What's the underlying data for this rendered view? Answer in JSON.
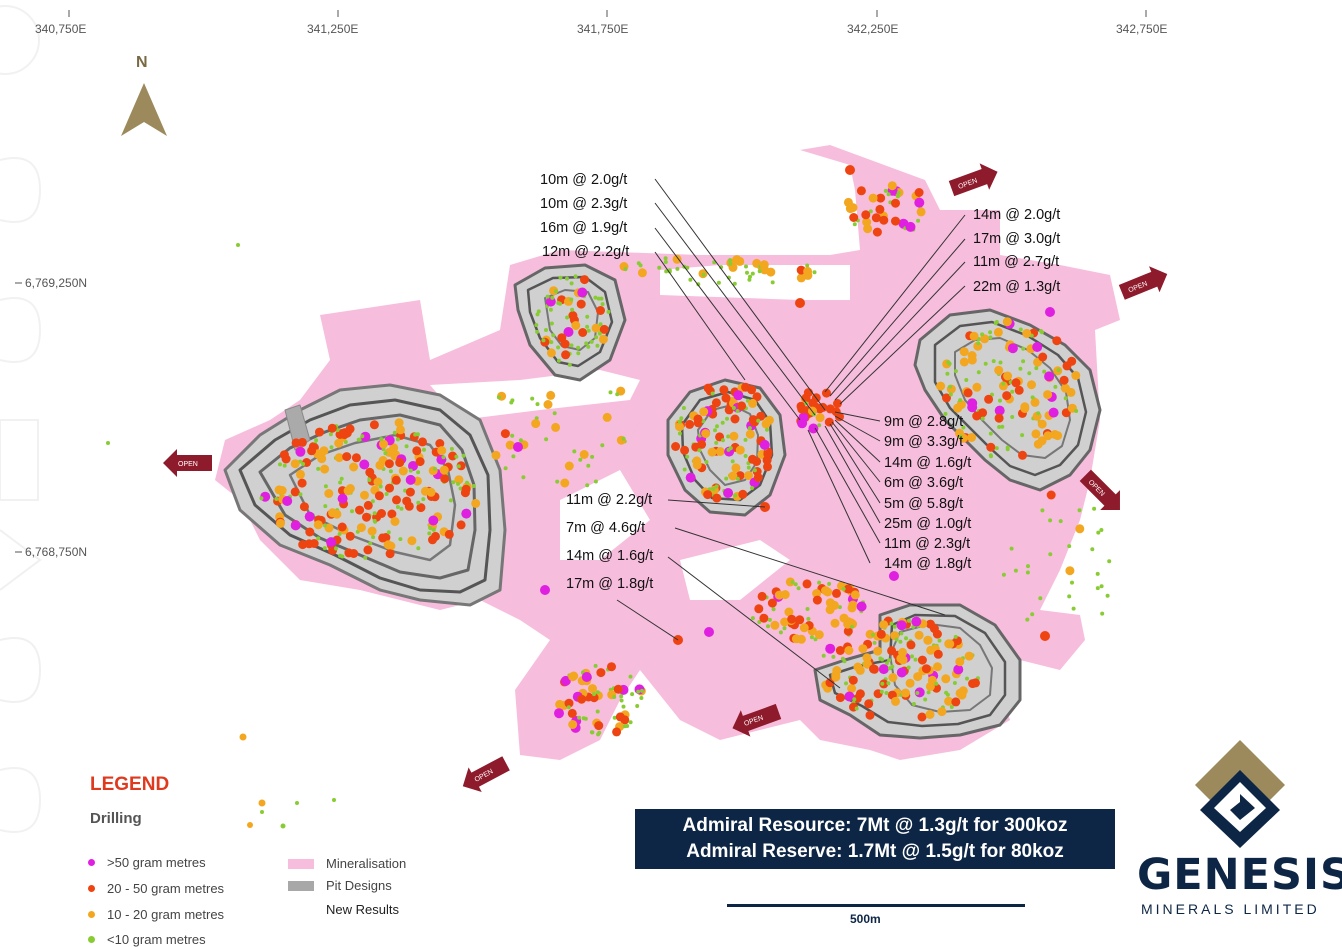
{
  "coordinates": {
    "eastings": [
      "340,750E",
      "341,250E",
      "341,750E",
      "342,250E",
      "342,750E"
    ],
    "northings": [
      "6,769,250N",
      "6,768,750N"
    ]
  },
  "north_label": "N",
  "open_label": "OPEN",
  "intercepts": {
    "group_a": [
      "10m @ 2.0g/t",
      "10m @ 2.3g/t",
      "16m @ 1.9g/t",
      "12m @ 2.2g/t"
    ],
    "group_b": [
      "14m @ 2.0g/t",
      "17m @ 3.0g/t",
      "11m @ 2.7g/t",
      "22m @ 1.3g/t"
    ],
    "group_c": [
      "9m @ 2.8g/t",
      "9m @ 3.3g/t",
      "14m @ 1.6g/t",
      "6m @ 3.6g/t",
      "5m @ 5.8g/t",
      "25m @ 1.0g/t",
      "11m @ 2.3g/t",
      "14m @ 1.8g/t"
    ],
    "group_d": [
      "11m @ 2.2g/t",
      "7m @ 4.6g/t",
      "14m @ 1.6g/t",
      "17m @ 1.8g/t"
    ]
  },
  "legend": {
    "title": "LEGEND",
    "drilling_label": "Drilling",
    "items": [
      ">50 gram metres",
      "20 - 50 gram metres",
      "10 - 20 gram metres",
      "<10 gram metres"
    ],
    "item_colors": [
      "#e020e0",
      "#ee4411",
      "#f3a720",
      "#88cc33"
    ],
    "mineralisation": "Mineralisation",
    "pit_designs": "Pit Designs",
    "new_results": "New Results"
  },
  "banner": {
    "line1": "Admiral Resource: 7Mt @ 1.3g/t for 300koz",
    "line2": "Admiral Reserve: 1.7Mt @ 1.5g/t for 80koz"
  },
  "scale_label": "500m",
  "logo": {
    "name": "GENESIS",
    "sub": "MINERALS LIMITED"
  },
  "colors": {
    "mineralisation": "#f7bddc",
    "pit": "#9e9e9e",
    "navy": "#0d2645",
    "gold": "#9c8a5c",
    "open_arrow": "#8e1b2c"
  }
}
